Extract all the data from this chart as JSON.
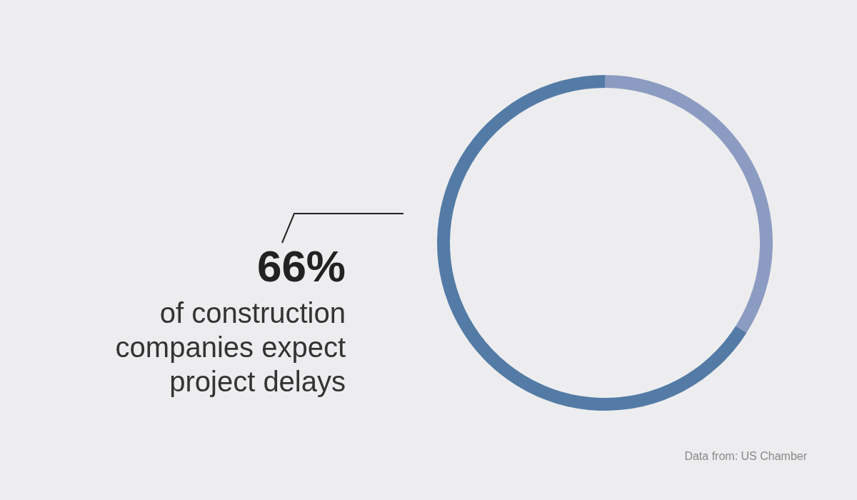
{
  "chart_data": {
    "type": "donut",
    "categories": [
      null,
      null
    ],
    "values": [
      34,
      66
    ],
    "colors": [
      "#8c9bc1",
      "#537ba6"
    ],
    "annotations": [
      "66%",
      "of construction companies expect project delays",
      "Data from: US Chamber"
    ]
  }
}
